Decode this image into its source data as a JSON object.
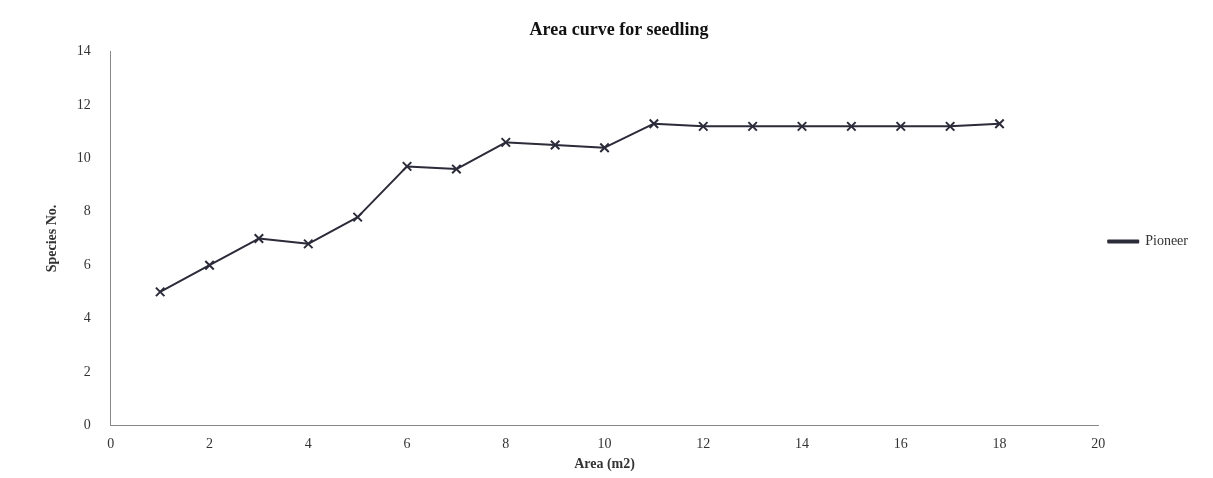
{
  "chart_data": {
    "type": "line",
    "title": "Area curve for seedling",
    "xlabel": "Area (m2)",
    "ylabel": "Species No.",
    "x": [
      1,
      2,
      3,
      4,
      5,
      6,
      7,
      8,
      9,
      10,
      11,
      12,
      13,
      14,
      15,
      16,
      17,
      18
    ],
    "series": [
      {
        "name": "Pioneer",
        "color": "#2b2b3a",
        "values": [
          5,
          6,
          7,
          6.8,
          7.8,
          9.7,
          9.6,
          10.6,
          10.5,
          10.4,
          11.3,
          11.2,
          11.2,
          11.2,
          11.2,
          11.2,
          11.2,
          11.3
        ]
      }
    ],
    "xlim": [
      0,
      20
    ],
    "xticks": [
      0,
      2,
      4,
      6,
      8,
      10,
      12,
      14,
      16,
      18,
      20
    ],
    "ylim": [
      0,
      14
    ],
    "yticks": [
      0,
      2,
      4,
      6,
      8,
      10,
      12,
      14
    ],
    "grid": false,
    "legend": "right",
    "marker": "cross",
    "line_style": "solid"
  }
}
